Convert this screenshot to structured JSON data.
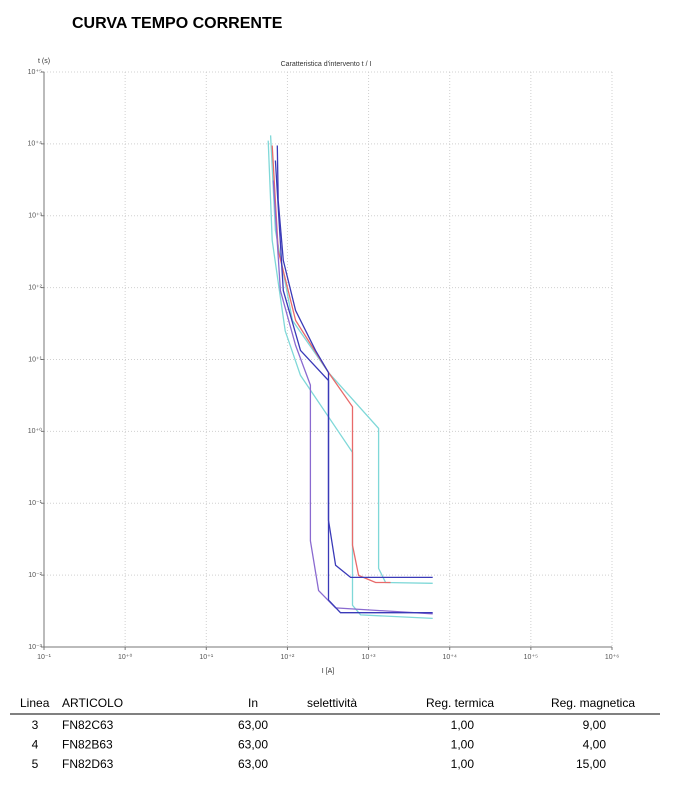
{
  "title": "CURVA TEMPO CORRENTE",
  "chart_data": {
    "type": "line",
    "title": "Caratteristica d'intervento t / I",
    "xlabel": "I [A]",
    "ylabel": "t (s)",
    "xscale": "log",
    "yscale": "log",
    "grid": true,
    "xlim": [
      0.1,
      1000000
    ],
    "ylim": [
      0.001,
      100000
    ],
    "xticks": [
      {
        "value": 0.1,
        "label": "10⁻¹"
      },
      {
        "value": 1,
        "label": "10⁺⁰"
      },
      {
        "value": 10,
        "label": "10⁺¹"
      },
      {
        "value": 100,
        "label": "10⁺²"
      },
      {
        "value": 1000,
        "label": "10⁺³"
      },
      {
        "value": 10000,
        "label": "10⁺⁴"
      },
      {
        "value": 100000,
        "label": "10⁺⁵"
      },
      {
        "value": 1000000,
        "label": "10⁺⁶"
      }
    ],
    "yticks": [
      {
        "value": 0.001,
        "label": "10⁻³"
      },
      {
        "value": 0.01,
        "label": "10⁻²"
      },
      {
        "value": 0.1,
        "label": "10⁻¹"
      },
      {
        "value": 1,
        "label": "10⁺⁰"
      },
      {
        "value": 10,
        "label": "10⁺¹"
      },
      {
        "value": 100,
        "label": "10⁺²"
      },
      {
        "value": 1000,
        "label": "10⁺³"
      },
      {
        "value": 10000,
        "label": "10⁺⁴"
      },
      {
        "value": 100000,
        "label": "10⁺⁵"
      }
    ],
    "series": [
      {
        "color": "#7fd8d8",
        "x": [
          62,
          71,
          115,
          321,
          1330,
          1330,
          1620,
          6170
        ],
        "values": [
          13100,
          625,
          35,
          6.6,
          1.1,
          0.0124,
          0.0079,
          0.0077
        ]
      },
      {
        "color": "#7fd8d8",
        "x": [
          58,
          65,
          94,
          145,
          634,
          634,
          797,
          6170
        ],
        "values": [
          11100,
          453,
          25,
          6.0,
          0.51,
          0.0038,
          0.0028,
          0.0025
        ]
      },
      {
        "color": "#e86a6a",
        "x": [
          65,
          77,
          126,
          321,
          634,
          634,
          753,
          1220,
          1870
        ],
        "values": [
          9500,
          329,
          35,
          6.6,
          2.2,
          0.026,
          0.0099,
          0.0079,
          0.0079
        ]
      },
      {
        "color": "#8a6ad0",
        "x": [
          67,
          82,
          126,
          192,
          192,
          242,
          392,
          6170
        ],
        "values": [
          3100,
          91,
          15.7,
          4.4,
          0.03,
          0.0061,
          0.0035,
          0.0029
        ]
      },
      {
        "color": "#3a3ab8",
        "x": [
          71,
          89,
          145,
          321,
          321,
          451,
          6170
        ],
        "values": [
          5880,
          91,
          13.4,
          5.1,
          0.0045,
          0.003,
          0.003
        ]
      },
      {
        "color": "#3a3ab8",
        "x": [
          75,
          77,
          89,
          126,
          222,
          321,
          321,
          392,
          600,
          6170
        ],
        "values": [
          9500,
          1630,
          239,
          48,
          13.4,
          6.6,
          0.058,
          0.0137,
          0.0093,
          0.0093
        ]
      }
    ]
  },
  "table": {
    "header": [
      "Linea",
      "ARTICOLO",
      "In",
      "selettività",
      "Reg. termica",
      "Reg. magnetica"
    ],
    "rows": [
      [
        "3",
        "FN82C63",
        "63,00",
        null,
        "1,00",
        "9,00"
      ],
      [
        "4",
        "FN82B63",
        "63,00",
        null,
        "1,00",
        "4,00"
      ],
      [
        "5",
        "FN82D63",
        "63,00",
        null,
        "1,00",
        "15,00"
      ]
    ]
  }
}
